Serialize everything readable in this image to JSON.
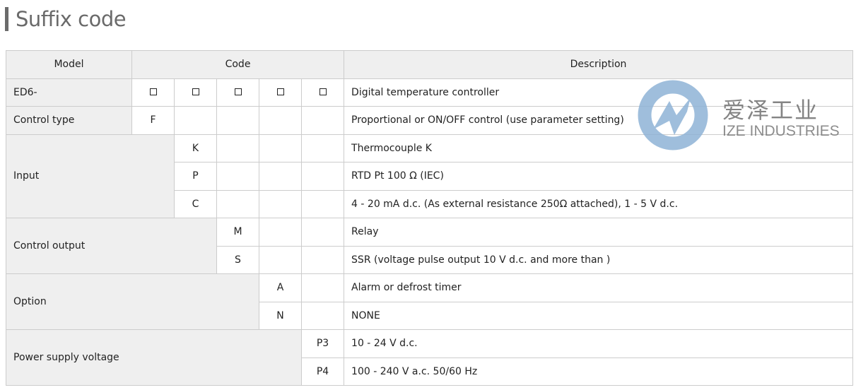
{
  "title": "Suffix code",
  "header": {
    "model": "Model",
    "code": "Code",
    "description": "Description"
  },
  "rows": {
    "ed6": {
      "label": "ED6-",
      "desc": "Digital temperature controller"
    },
    "control_type": {
      "label": "Control type",
      "codes": [
        "F"
      ],
      "desc": "Proportional or ON/OFF control (use parameter setting)"
    },
    "input": {
      "label": "Input",
      "codes": [
        "K",
        "P",
        "C"
      ],
      "descs": [
        "Thermocouple K",
        "RTD Pt 100 Ω (IEC)",
        "4 - 20 mA d.c. (As external resistance 250Ω attached), 1 - 5 V d.c."
      ]
    },
    "control_output": {
      "label": "Control output",
      "codes": [
        "M",
        "S"
      ],
      "descs": [
        "Relay",
        "SSR (voltage pulse output 10 V d.c. and more than )"
      ]
    },
    "option": {
      "label": "Option",
      "codes": [
        "A",
        "N"
      ],
      "descs": [
        "Alarm or defrost timer",
        "NONE"
      ]
    },
    "power": {
      "label": "Power supply voltage",
      "codes": [
        "P3",
        "P4"
      ],
      "descs": [
        "10 - 24 V d.c.",
        "100 - 240 V a.c. 50/60 Hz"
      ]
    }
  },
  "watermark": {
    "cn": "爱泽工业",
    "en": "IZE INDUSTRIES",
    "color": "#8fb3d6"
  }
}
